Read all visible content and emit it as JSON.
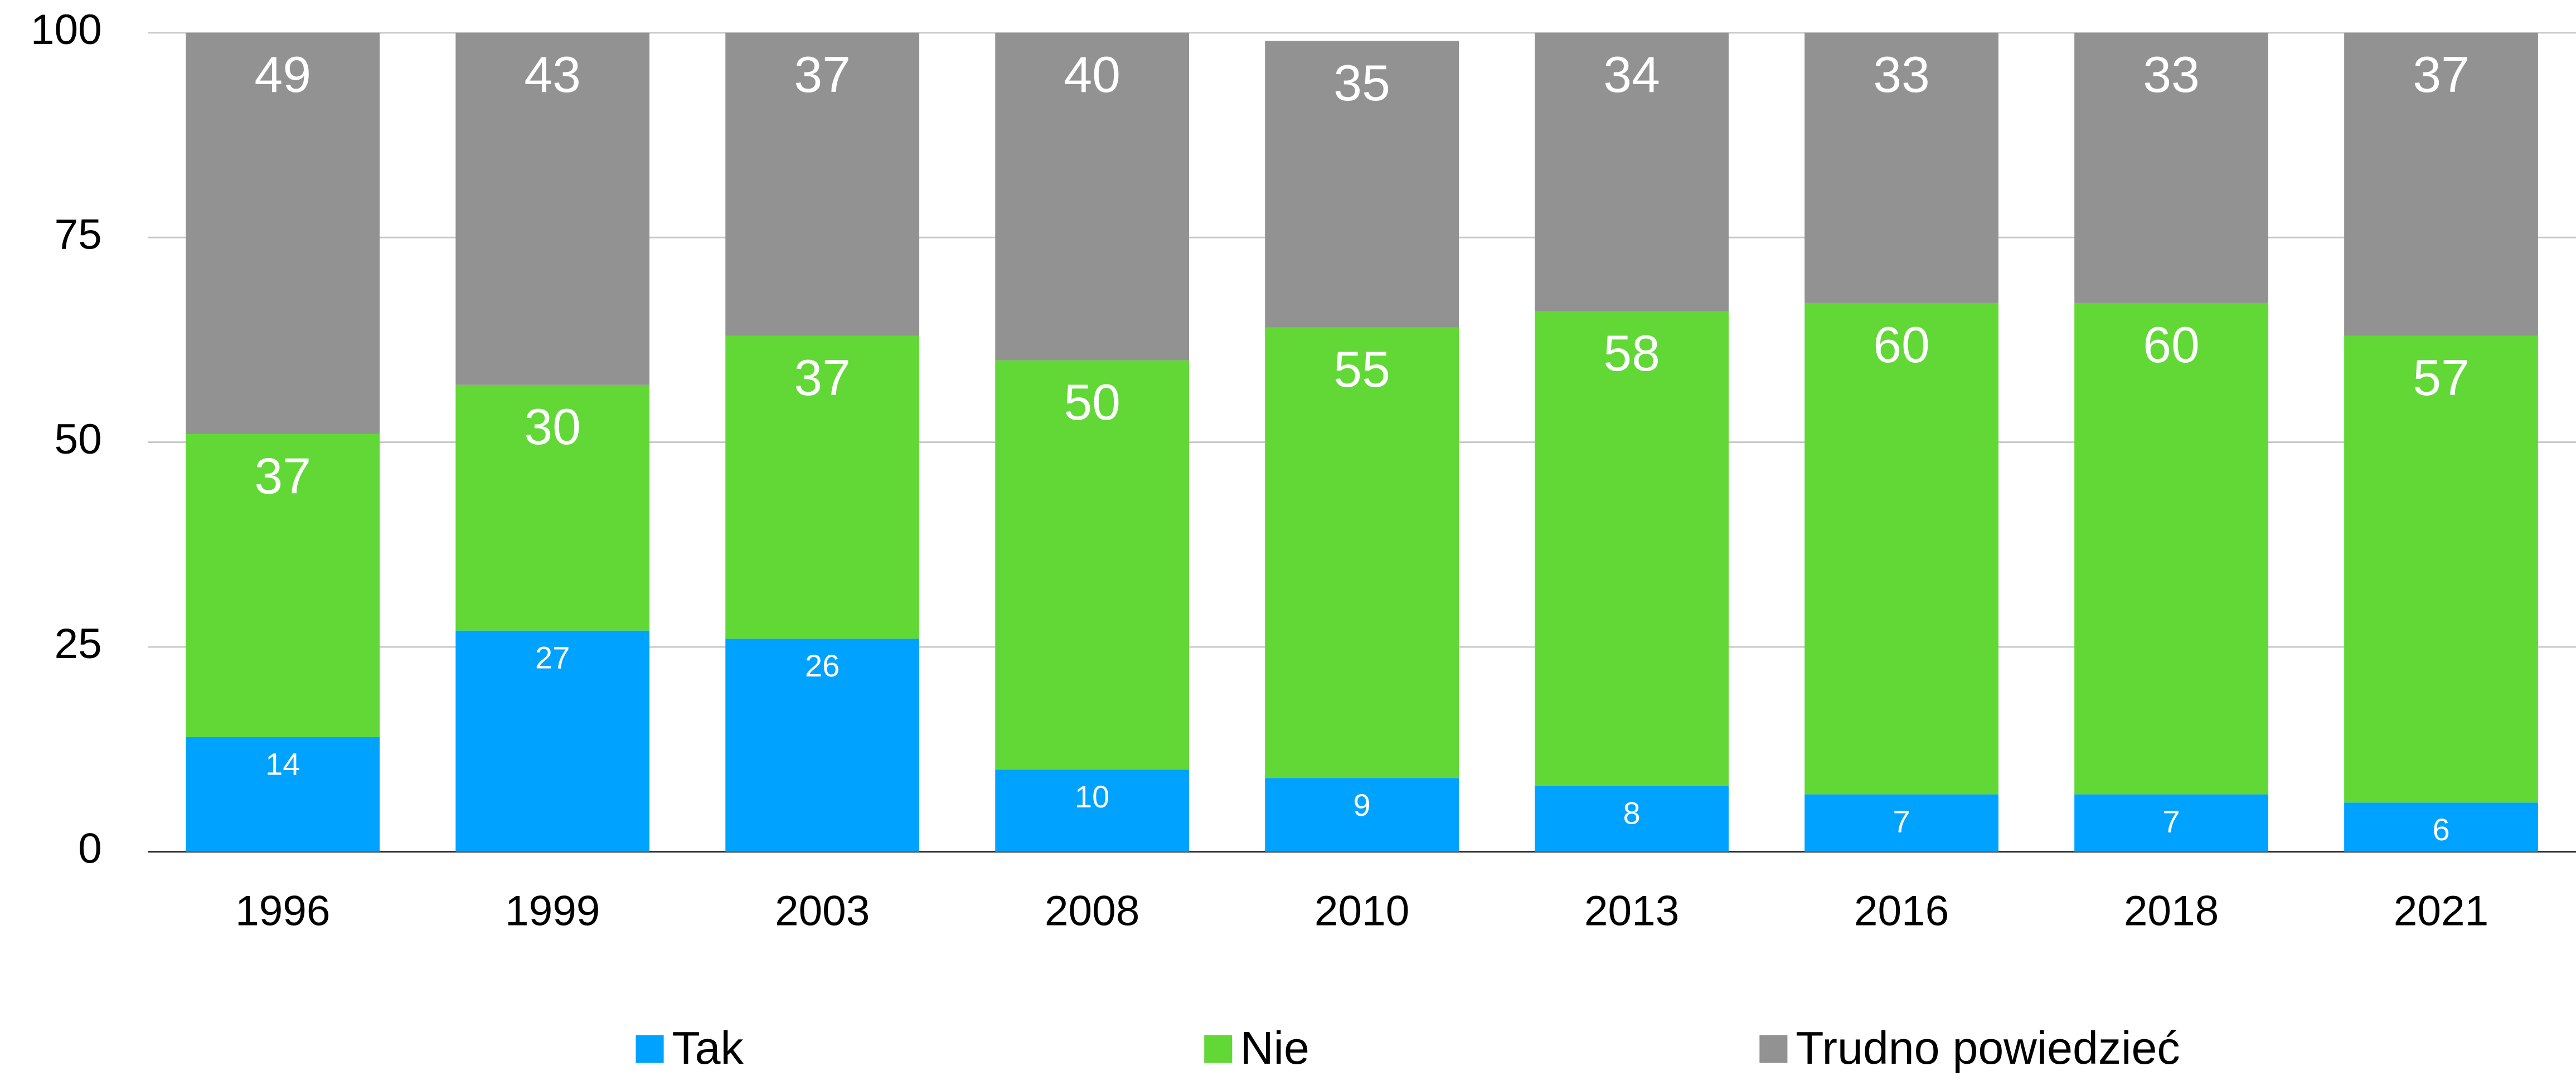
{
  "chart_data": {
    "type": "stacked_bar",
    "categories": [
      "1996",
      "1999",
      "2003",
      "2008",
      "2010",
      "2013",
      "2016",
      "2018",
      "2021"
    ],
    "series": [
      {
        "name": "Tak",
        "color": "#00a2ff",
        "values": [
          14,
          27,
          26,
          10,
          9,
          8,
          7,
          7,
          6
        ]
      },
      {
        "name": "Nie",
        "color": "#61d836",
        "values": [
          37,
          30,
          37,
          50,
          55,
          58,
          60,
          60,
          57
        ]
      },
      {
        "name": "Trudno powiedzieć",
        "color": "#929292",
        "values": [
          49,
          43,
          37,
          40,
          35,
          34,
          33,
          33,
          37
        ]
      }
    ],
    "ylim": [
      0,
      100
    ],
    "yticks": [
      0,
      25,
      50,
      75,
      100
    ],
    "grid": true,
    "legend": "bottom"
  }
}
